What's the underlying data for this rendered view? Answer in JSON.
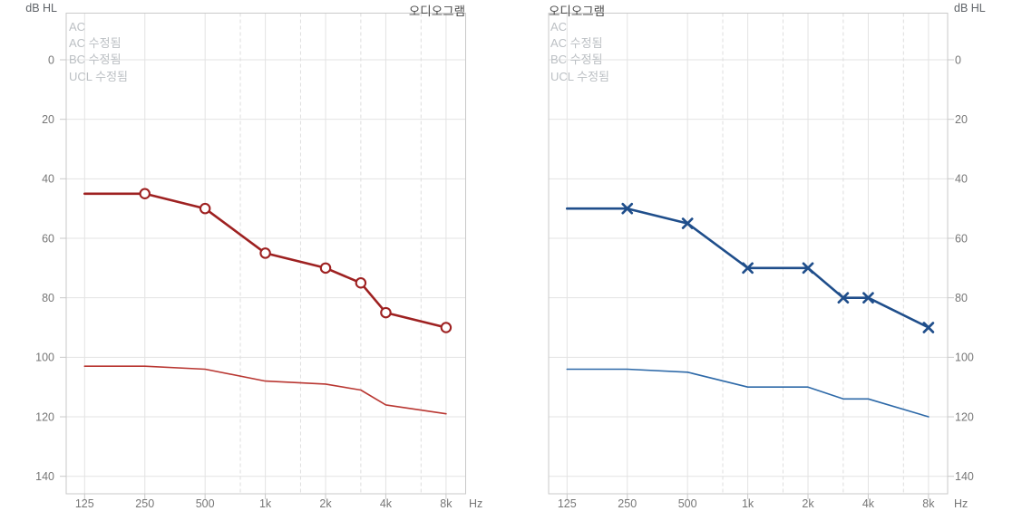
{
  "app": {
    "background": "#ffffff"
  },
  "chart_data": [
    {
      "type": "line",
      "title": "오디오그램",
      "y_axis_label": "dB HL",
      "x_axis_label": "Hz",
      "legend": [
        "AC",
        "AC 수정됨",
        "BC 수정됨",
        "UCL 수정됨"
      ],
      "legend_position": "top-left-inside",
      "legend_text_color": "#bcc0c4",
      "x": [
        125,
        250,
        500,
        1000,
        2000,
        3000,
        4000,
        8000
      ],
      "x_scale": "log2",
      "x_tick_labels": [
        "125",
        "250",
        "500",
        "1k",
        "2k",
        "4k",
        "8k"
      ],
      "x_tick_freqs": [
        125,
        250,
        500,
        1000,
        2000,
        4000,
        8000
      ],
      "x_minor_dashed_freqs": [
        750,
        1500,
        3000,
        6000
      ],
      "y_ticks": [
        0,
        20,
        40,
        60,
        80,
        100,
        120,
        140
      ],
      "y_inverted": true,
      "ylim": [
        -15,
        145
      ],
      "y_axis_side": "left",
      "grid": true,
      "series": [
        {
          "name": "AC",
          "marker": "circle",
          "marker_on_first_point": false,
          "color": "#9e2121",
          "line_width": 2.6,
          "values": [
            45,
            45,
            50,
            65,
            70,
            75,
            85,
            90
          ]
        },
        {
          "name": "UCL 수정됨",
          "marker": "none",
          "color": "#b93732",
          "line_width": 1.6,
          "values": [
            103,
            103,
            104,
            108,
            109,
            111,
            116,
            119
          ]
        }
      ]
    },
    {
      "type": "line",
      "title": "오디오그램",
      "y_axis_label": "dB HL",
      "x_axis_label": "Hz",
      "legend": [
        "AC",
        "AC 수정됨",
        "BC 수정됨",
        "UCL 수정됨"
      ],
      "legend_position": "top-left-inside",
      "legend_text_color": "#bcc0c4",
      "x": [
        125,
        250,
        500,
        1000,
        2000,
        3000,
        4000,
        8000
      ],
      "x_scale": "log2",
      "x_tick_labels": [
        "125",
        "250",
        "500",
        "1k",
        "2k",
        "4k",
        "8k"
      ],
      "x_tick_freqs": [
        125,
        250,
        500,
        1000,
        2000,
        4000,
        8000
      ],
      "x_minor_dashed_freqs": [
        750,
        1500,
        3000,
        6000
      ],
      "y_ticks": [
        0,
        20,
        40,
        60,
        80,
        100,
        120,
        140
      ],
      "y_inverted": true,
      "ylim": [
        -15,
        145
      ],
      "y_axis_side": "right",
      "grid": true,
      "series": [
        {
          "name": "AC",
          "marker": "x",
          "marker_on_first_point": false,
          "color": "#1f4e8b",
          "line_width": 2.6,
          "values": [
            50,
            50,
            55,
            70,
            70,
            80,
            80,
            90
          ]
        },
        {
          "name": "UCL 수정됨",
          "marker": "none",
          "color": "#2d69a8",
          "line_width": 1.6,
          "values": [
            104,
            104,
            105,
            110,
            110,
            114,
            114,
            120
          ]
        }
      ]
    }
  ]
}
